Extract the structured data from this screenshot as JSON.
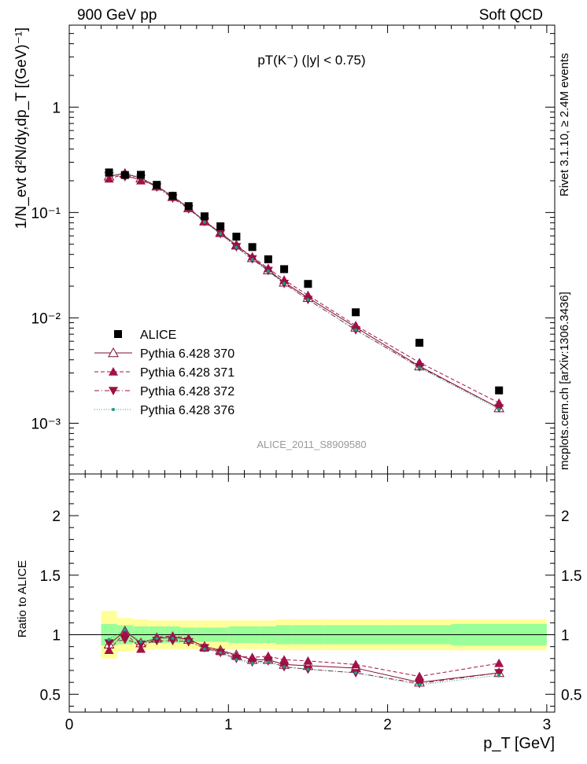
{
  "header": {
    "left": "900 GeV pp",
    "right": "Soft QCD"
  },
  "side_labels": {
    "rivet": "Rivet 3.1.10, ≥ 2.4M events",
    "mcplots": "mcplots.cern.ch [arXiv:1306.3436]"
  },
  "chart_data": {
    "type": "scatter",
    "title": "pT(K⁻) (|y| < 0.75)",
    "analysis_label": "ALICE_2011_S8909580",
    "xlabel": "p_T [GeV]",
    "ylabel": "1/N_evt d²N/dy,dp_T [(GeV)⁻¹]",
    "ratio_ylabel": "Ratio to ALICE",
    "xlim": [
      0,
      3.05
    ],
    "ylim": [
      0.00033,
      6
    ],
    "yscale": "log",
    "ratio_ylim": [
      0.35,
      2.35
    ],
    "x_ticks": [
      "0",
      "1",
      "2",
      "3"
    ],
    "y_ticks": [
      "10⁻³",
      "10⁻²",
      "10⁻¹",
      "1"
    ],
    "ratio_ticks": [
      "0.5",
      "1",
      "1.5",
      "2"
    ],
    "legend_position": "lower-left",
    "bin_edges": [
      0.2,
      0.3,
      0.4,
      0.5,
      0.6,
      0.7,
      0.8,
      0.9,
      1.0,
      1.1,
      1.2,
      1.3,
      1.4,
      1.6,
      2.0,
      2.4,
      3.0
    ],
    "x": [
      0.25,
      0.35,
      0.45,
      0.55,
      0.65,
      0.75,
      0.85,
      0.95,
      1.05,
      1.15,
      1.25,
      1.35,
      1.5,
      1.8,
      2.2,
      2.7
    ],
    "data": {
      "name": "ALICE",
      "values": [
        0.24,
        0.227,
        0.228,
        0.183,
        0.144,
        0.115,
        0.092,
        0.074,
        0.059,
        0.047,
        0.036,
        0.029,
        0.021,
        0.0113,
        0.0058,
        0.00205
      ],
      "band_inner": [
        0.09,
        0.08,
        0.07,
        0.07,
        0.07,
        0.06,
        0.06,
        0.06,
        0.07,
        0.07,
        0.07,
        0.08,
        0.08,
        0.08,
        0.08,
        0.09
      ],
      "band_outer": [
        0.2,
        0.14,
        0.13,
        0.12,
        0.12,
        0.12,
        0.12,
        0.12,
        0.12,
        0.12,
        0.12,
        0.13,
        0.13,
        0.13,
        0.13,
        0.13
      ]
    },
    "series": [
      {
        "name": "Pythia 6.428 370",
        "color": "#7a0f2a",
        "marker": "triangle-open",
        "line": "solid",
        "ratio": [
          0.92,
          1.03,
          0.93,
          0.97,
          0.98,
          0.96,
          0.9,
          0.87,
          0.83,
          0.79,
          0.79,
          0.75,
          0.74,
          0.72,
          0.6,
          0.68
        ]
      },
      {
        "name": "Pythia 6.428 371",
        "color": "#a3104a",
        "marker": "triangle-up-filled",
        "line": "dashed",
        "ratio": [
          0.87,
          1.02,
          0.88,
          0.98,
          0.99,
          0.97,
          0.89,
          0.86,
          0.82,
          0.81,
          0.82,
          0.79,
          0.78,
          0.75,
          0.65,
          0.76
        ]
      },
      {
        "name": "Pythia 6.428 372",
        "color": "#9a1040",
        "marker": "triangle-down-filled",
        "line": "dashdot",
        "ratio": [
          0.93,
          0.96,
          0.92,
          0.95,
          0.95,
          0.94,
          0.89,
          0.85,
          0.8,
          0.77,
          0.78,
          0.73,
          0.71,
          0.68,
          0.59,
          0.68
        ]
      },
      {
        "name": "Pythia 6.428 376",
        "color": "#1a9a8a",
        "marker": "dot",
        "line": "dotted",
        "ratio": [
          0.96,
          1.04,
          0.94,
          0.97,
          0.97,
          0.95,
          0.88,
          0.85,
          0.79,
          0.76,
          0.77,
          0.73,
          0.71,
          0.68,
          0.58,
          0.66
        ]
      }
    ]
  }
}
